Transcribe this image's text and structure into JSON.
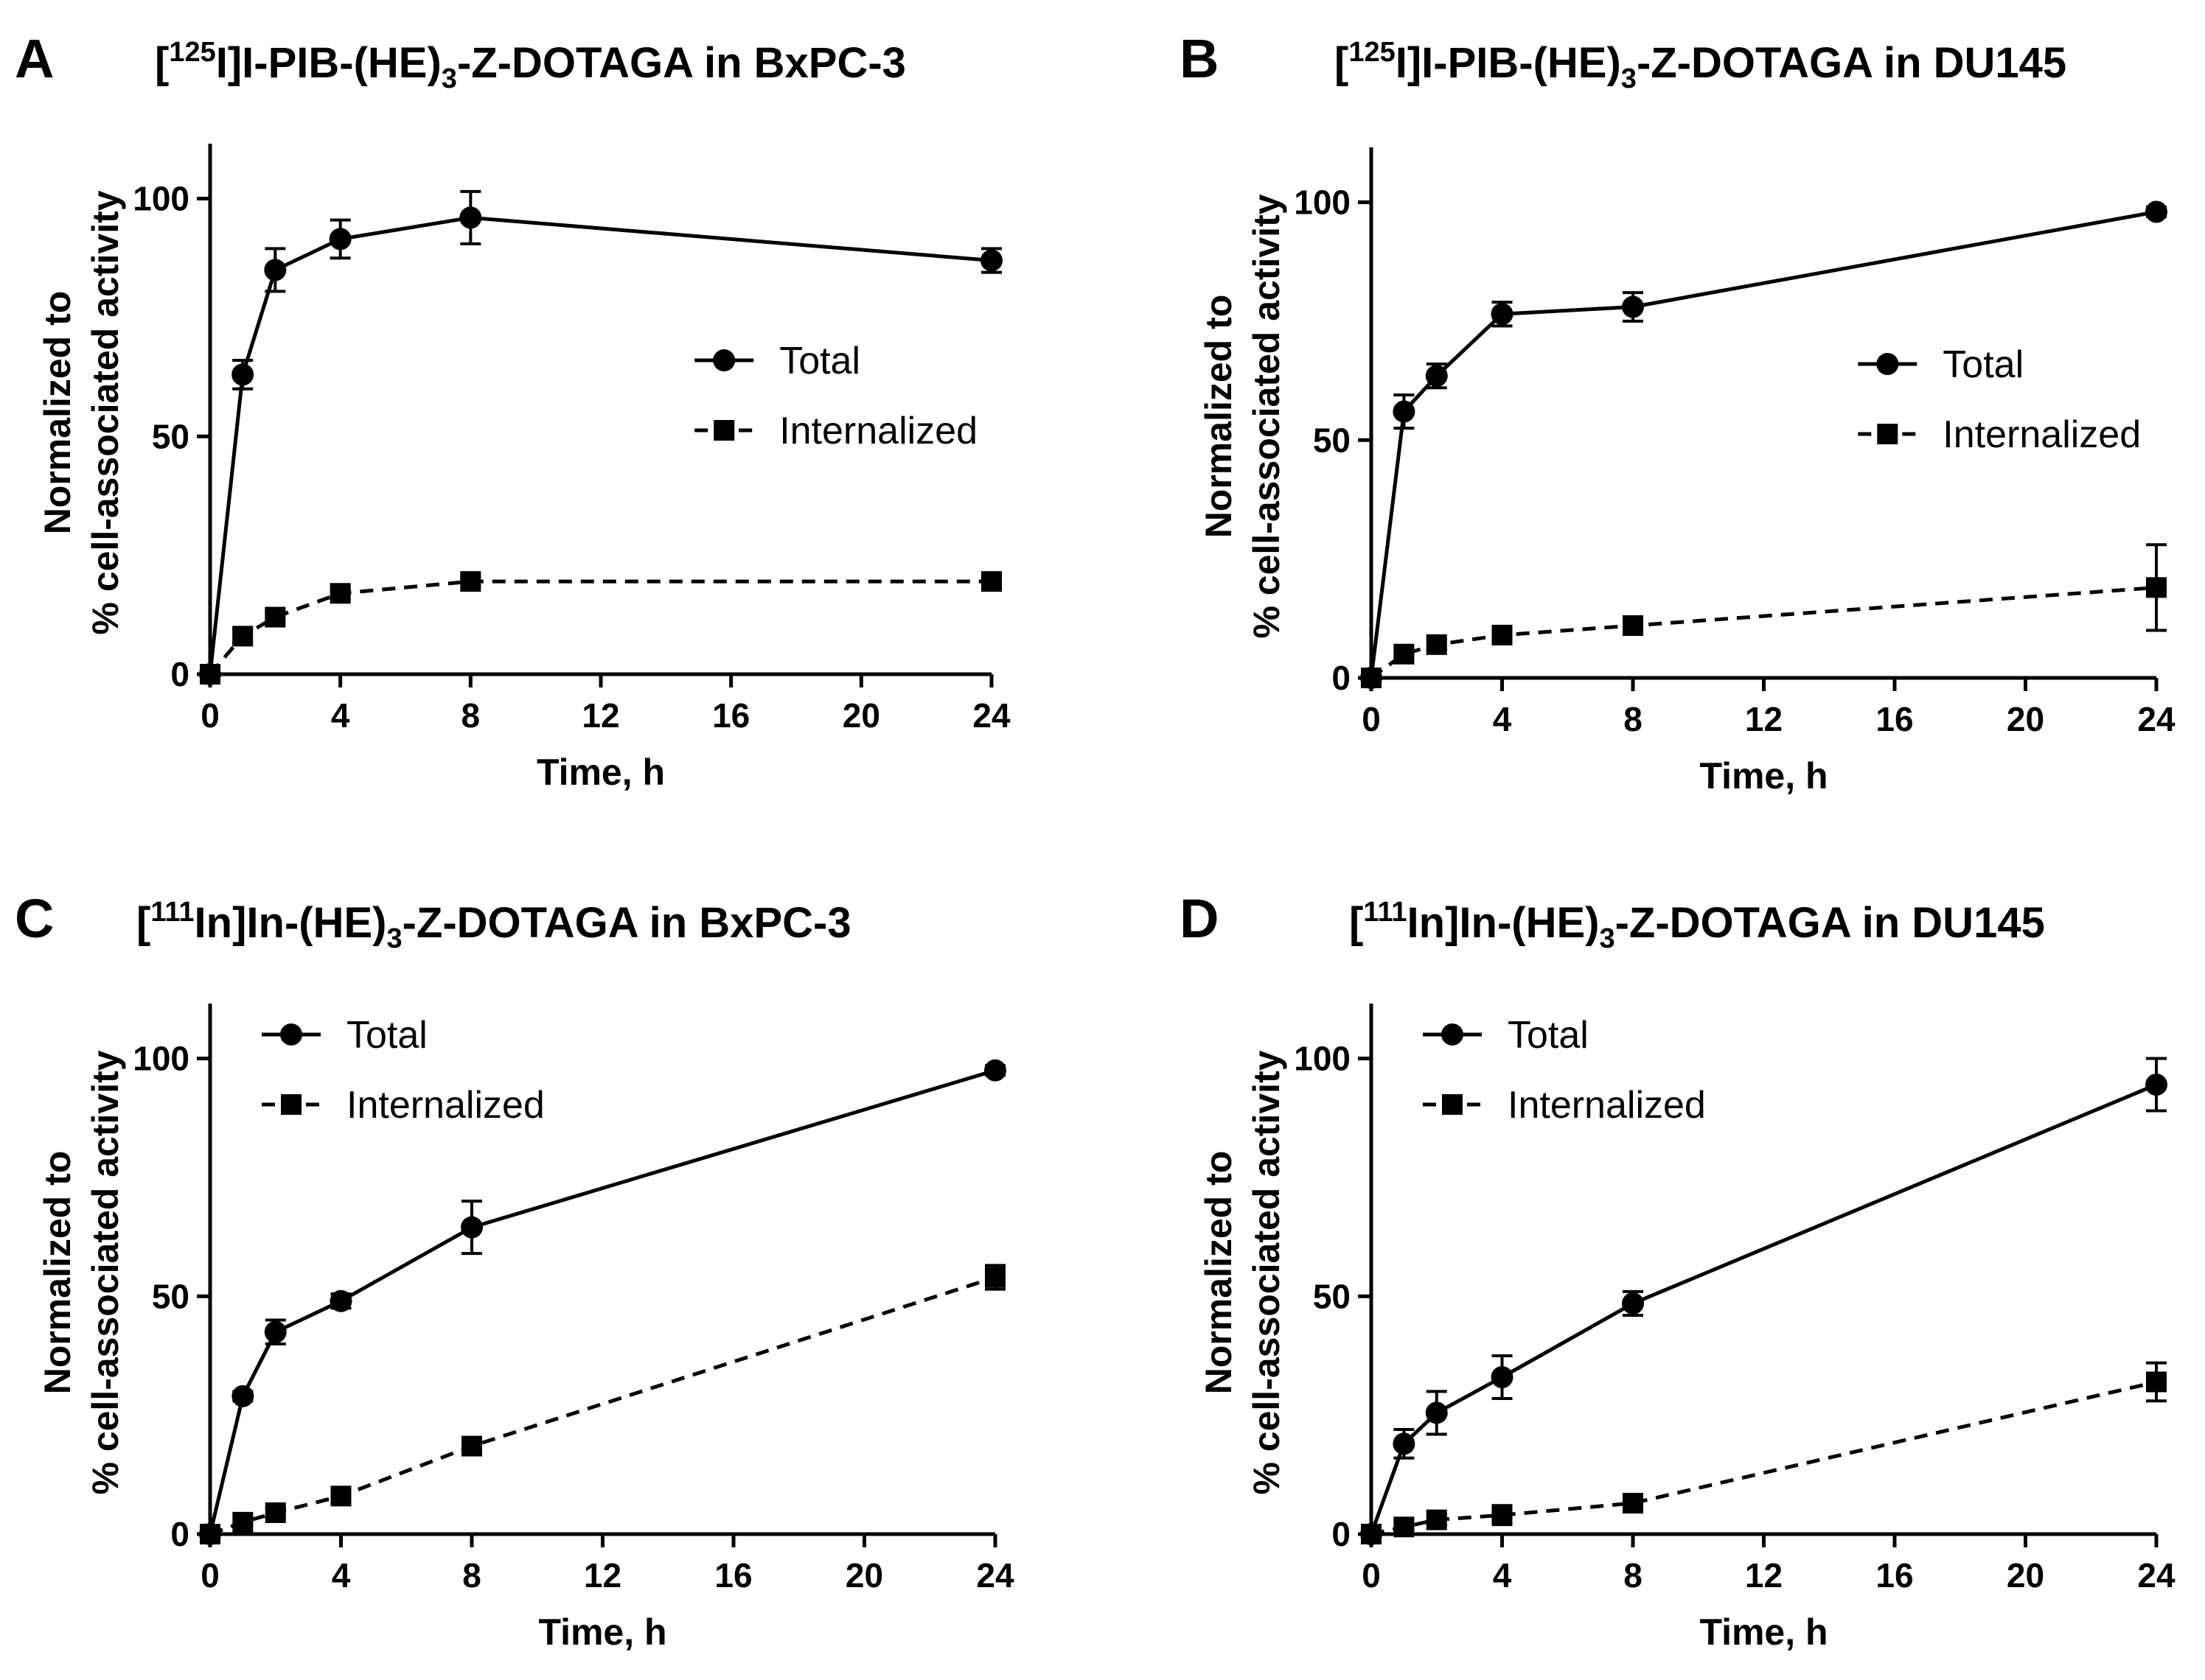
{
  "colors": {
    "ink": "#000000",
    "background": "#ffffff"
  },
  "chart_data": [
    {
      "panel": "A",
      "type": "line",
      "title_prefix": "[",
      "title_isotope": "125",
      "title_part1": "I]I-PIB-(HE)",
      "title_sub": "3",
      "title_part2": "-Z-DOTAGA in BxPC-3",
      "xlabel": "Time, h",
      "ylabel_line1": "Normalized to",
      "ylabel_line2": "% cell-associated activity",
      "xlim": [
        0,
        24
      ],
      "ylim": [
        0,
        110
      ],
      "xticks": [
        0,
        4,
        8,
        12,
        16,
        20,
        24
      ],
      "yticks": [
        0,
        50,
        100
      ],
      "legend_position": "right-middle",
      "series": [
        {
          "name": "Total",
          "marker": "circle",
          "dash": "solid",
          "x": [
            0,
            1,
            2,
            4,
            8,
            24
          ],
          "y": [
            0,
            63,
            85,
            91.5,
            96,
            87
          ],
          "err": [
            0,
            3,
            4.5,
            4,
            5.5,
            2.5
          ]
        },
        {
          "name": "Internalized",
          "marker": "square",
          "dash": "dashed",
          "x": [
            0,
            1,
            2,
            4,
            8,
            24
          ],
          "y": [
            0,
            8,
            12,
            17,
            19.5,
            19.5
          ],
          "err": [
            0,
            1.5,
            1,
            1,
            1,
            1
          ]
        }
      ]
    },
    {
      "panel": "B",
      "type": "line",
      "title_prefix": "[",
      "title_isotope": "125",
      "title_part1": "I]I-PIB-(HE)",
      "title_sub": "3",
      "title_part2": "-Z-DOTAGA in DU145",
      "xlabel": "Time, h",
      "ylabel_line1": "Normalized to",
      "ylabel_line2": "% cell-associated activity",
      "xlim": [
        0,
        24
      ],
      "ylim": [
        0,
        110
      ],
      "xticks": [
        0,
        4,
        8,
        12,
        16,
        20,
        24
      ],
      "yticks": [
        0,
        50,
        100
      ],
      "legend_position": "right-middle",
      "series": [
        {
          "name": "Total",
          "marker": "circle",
          "dash": "solid",
          "x": [
            0,
            1,
            2,
            4,
            8,
            24
          ],
          "y": [
            0,
            56,
            63.5,
            76.5,
            78,
            98
          ],
          "err": [
            0,
            3.5,
            2.5,
            2.5,
            3,
            1
          ]
        },
        {
          "name": "Internalized",
          "marker": "square",
          "dash": "dashed",
          "x": [
            0,
            1,
            2,
            4,
            8,
            24
          ],
          "y": [
            0,
            5,
            7,
            9,
            11,
            19
          ],
          "err": [
            0,
            1,
            1,
            1,
            1,
            9
          ]
        }
      ]
    },
    {
      "panel": "C",
      "type": "line",
      "title_prefix": "[",
      "title_isotope": "111",
      "title_part1": "In]In-(HE)",
      "title_sub": "3",
      "title_part2": "-Z-DOTAGA in BxPC-3",
      "xlabel": "Time, h",
      "ylabel_line1": "Normalized to",
      "ylabel_line2": "% cell-associated activity",
      "xlim": [
        0,
        24
      ],
      "ylim": [
        0,
        110
      ],
      "xticks": [
        0,
        4,
        8,
        12,
        16,
        20,
        24
      ],
      "yticks": [
        0,
        50,
        100
      ],
      "legend_position": "top-left",
      "series": [
        {
          "name": "Total",
          "marker": "circle",
          "dash": "solid",
          "x": [
            0,
            1,
            2,
            4,
            8,
            24
          ],
          "y": [
            0,
            29,
            42.5,
            49,
            64.5,
            97.5
          ],
          "err": [
            0,
            1,
            2.5,
            1.5,
            5.5,
            1
          ]
        },
        {
          "name": "Internalized",
          "marker": "square",
          "dash": "dashed",
          "x": [
            0,
            1,
            2,
            4,
            8,
            24
          ],
          "y": [
            0,
            2.5,
            4.5,
            8,
            18.5,
            54
          ],
          "err": [
            0,
            0.5,
            1,
            1,
            1,
            2.5
          ]
        }
      ]
    },
    {
      "panel": "D",
      "type": "line",
      "title_prefix": "[",
      "title_isotope": "111",
      "title_part1": "In]In-(HE)",
      "title_sub": "3",
      "title_part2": "-Z-DOTAGA in DU145",
      "xlabel": "Time, h",
      "ylabel_line1": "Normalized to",
      "ylabel_line2": "% cell-associated activity",
      "xlim": [
        0,
        24
      ],
      "ylim": [
        0,
        110
      ],
      "xticks": [
        0,
        4,
        8,
        12,
        16,
        20,
        24
      ],
      "yticks": [
        0,
        50,
        100
      ],
      "legend_position": "top-left",
      "series": [
        {
          "name": "Total",
          "marker": "circle",
          "dash": "solid",
          "x": [
            0,
            1,
            2,
            4,
            8,
            24
          ],
          "y": [
            0,
            19,
            25.5,
            33,
            48.5,
            94.5
          ],
          "err": [
            0,
            3,
            4.5,
            4.5,
            2.5,
            5.5
          ]
        },
        {
          "name": "Internalized",
          "marker": "square",
          "dash": "dashed",
          "x": [
            0,
            1,
            2,
            4,
            8,
            24
          ],
          "y": [
            0,
            1.5,
            3,
            4,
            6.5,
            32
          ],
          "err": [
            0,
            0.5,
            1,
            2,
            1,
            4
          ]
        }
      ]
    }
  ]
}
